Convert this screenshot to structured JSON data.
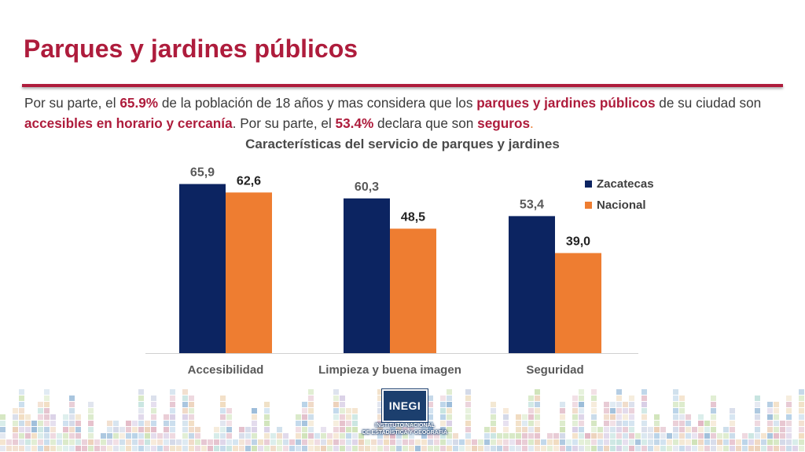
{
  "slide": {
    "title": "Parques y jardines públicos",
    "paragraph": {
      "t1": "Por su parte, el ",
      "h1": "65.9%",
      "t2": " de la población de 18 años y mas considera que los ",
      "h2": "parques y jardines públicos",
      "t3": " de su ciudad son ",
      "h3": "accesibles en horario y cercanía",
      "t4": ". Por su parte, el ",
      "h4": "53.4%",
      "t5": " declara que son ",
      "h5": "seguros",
      "t6": "."
    }
  },
  "logo": {
    "text": "INEGI",
    "line1": "INSTITUTO NACIONAL",
    "line2": "DE ESTADÍSTICA Y GEOGRAFÍA"
  },
  "chart_data": {
    "type": "bar",
    "title": "Características del servicio de parques y jardines",
    "categories": [
      "Accesibilidad",
      "Limpieza y buena imagen",
      "Seguridad"
    ],
    "series": [
      {
        "name": "Zacatecas",
        "values": [
          65.9,
          60.3,
          53.4
        ],
        "labels": [
          "65,9",
          "60,3",
          "53,4"
        ],
        "color": "#0c2461"
      },
      {
        "name": "Nacional",
        "values": [
          62.6,
          48.5,
          39.0
        ],
        "labels": [
          "62,6",
          "48,5",
          "39,0"
        ],
        "color": "#ee7d31"
      }
    ],
    "ylim": [
      0,
      70
    ],
    "grid": false,
    "legend": "top-right"
  },
  "colors": {
    "accent": "#ae1c3c",
    "text": "#3a3a3a"
  }
}
